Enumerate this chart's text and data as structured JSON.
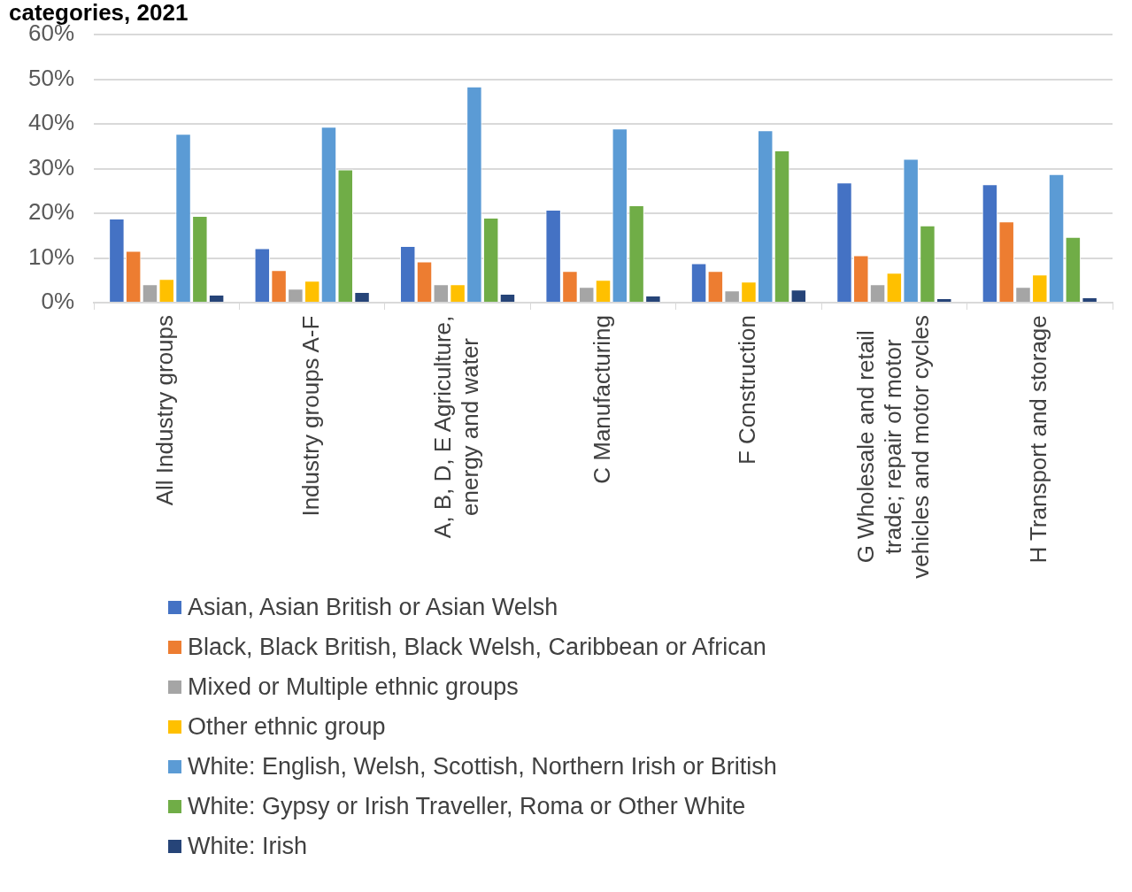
{
  "chart_data": {
    "type": "bar",
    "title": "categories, 2021",
    "categories": [
      "All Industry groups",
      "Industry groups A-F",
      "A, B, D, E Agriculture, energy and water",
      "C Manufacturing",
      "F Construction",
      "G Wholesale and retail trade; repair of motor vehicles and motor cycles",
      "H Transport and storage"
    ],
    "series": [
      {
        "name": "Asian, Asian British or Asian Welsh",
        "color": "#4472c4",
        "values": [
          18.8,
          12.2,
          12.7,
          20.8,
          8.8,
          26.9,
          26.5
        ]
      },
      {
        "name": "Black, Black British, Black Welsh, Caribbean or African",
        "color": "#ed7d31",
        "values": [
          11.6,
          7.3,
          9.2,
          7.1,
          7.1,
          10.6,
          18.2
        ]
      },
      {
        "name": "Mixed or Multiple ethnic groups",
        "color": "#a5a5a5",
        "values": [
          4.1,
          3.1,
          4.1,
          3.5,
          2.7,
          4.1,
          3.5
        ]
      },
      {
        "name": "Other ethnic group",
        "color": "#ffc000",
        "values": [
          5.3,
          4.9,
          4.1,
          5.1,
          4.7,
          6.7,
          6.3
        ]
      },
      {
        "name": "White: English, Welsh, Scottish, Northern Irish or British",
        "color": "#5b9bd5",
        "values": [
          37.8,
          39.4,
          48.4,
          39.0,
          38.6,
          32.2,
          28.8
        ]
      },
      {
        "name": "White: Gypsy or Irish Traveller, Roma or Other White",
        "color": "#70ad47",
        "values": [
          19.4,
          29.8,
          19.0,
          21.8,
          34.1,
          17.3,
          14.7
        ]
      },
      {
        "name": "White: Irish",
        "color": "#264478",
        "values": [
          1.8,
          2.4,
          2.0,
          1.6,
          2.9,
          1.0,
          1.2
        ]
      }
    ],
    "ylim": [
      0,
      60
    ],
    "yticks": [
      {
        "value": 0,
        "label": "0%"
      },
      {
        "value": 10,
        "label": "10%"
      },
      {
        "value": 20,
        "label": "20%"
      },
      {
        "value": 30,
        "label": "30%"
      },
      {
        "value": 40,
        "label": "40%"
      },
      {
        "value": 50,
        "label": "50%"
      },
      {
        "value": 60,
        "label": "60%"
      }
    ],
    "grid": "y",
    "legend": "bottom"
  }
}
